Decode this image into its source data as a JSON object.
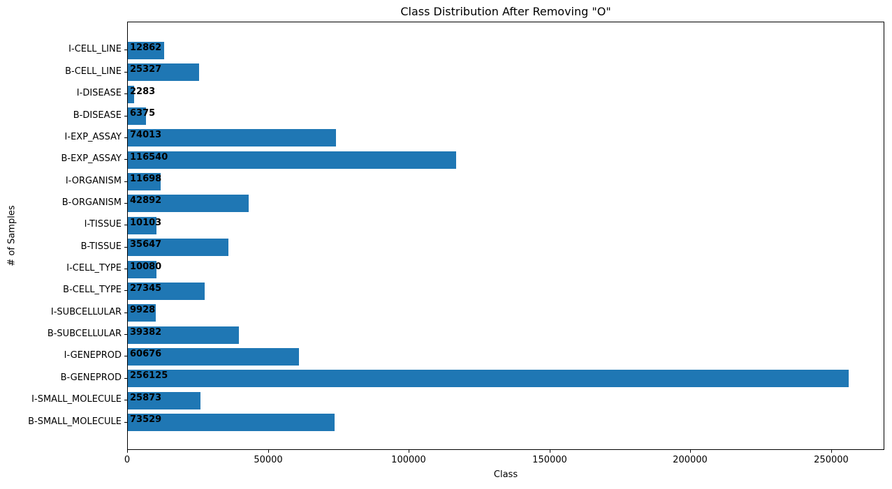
{
  "chart_data": {
    "type": "bar",
    "orientation": "horizontal",
    "title": "Class Distribution After Removing \"O\"",
    "xlabel": "Class",
    "ylabel": "# of Samples",
    "categories": [
      "I-CELL_LINE",
      "B-CELL_LINE",
      "I-DISEASE",
      "B-DISEASE",
      "I-EXP_ASSAY",
      "B-EXP_ASSAY",
      "I-ORGANISM",
      "B-ORGANISM",
      "I-TISSUE",
      "B-TISSUE",
      "I-CELL_TYPE",
      "B-CELL_TYPE",
      "I-SUBCELLULAR",
      "B-SUBCELLULAR",
      "I-GENEPROD",
      "B-GENEPROD",
      "I-SMALL_MOLECULE",
      "B-SMALL_MOLECULE"
    ],
    "values": [
      12862,
      25327,
      2283,
      6375,
      74013,
      116540,
      11698,
      42892,
      10103,
      35647,
      10080,
      27345,
      9928,
      39382,
      60676,
      256125,
      25873,
      73529
    ],
    "bar_value_labels": [
      "12862",
      "25327",
      "2283",
      "6375",
      "74013",
      "116540",
      "11698",
      "42892",
      "10103",
      "35647",
      "10080",
      "27345",
      "9928",
      "39382",
      "60676",
      "256125",
      "25873",
      "73529"
    ],
    "bar_color": "#1f77b4",
    "text_color": "#000000",
    "xlim": [
      0,
      268931
    ],
    "xticks": {
      "values": [
        0,
        50000,
        100000,
        150000,
        200000,
        250000
      ],
      "labels": [
        "0",
        "50000",
        "100000",
        "150000",
        "200000",
        "250000"
      ]
    },
    "grid": false,
    "legend_position": "none"
  }
}
